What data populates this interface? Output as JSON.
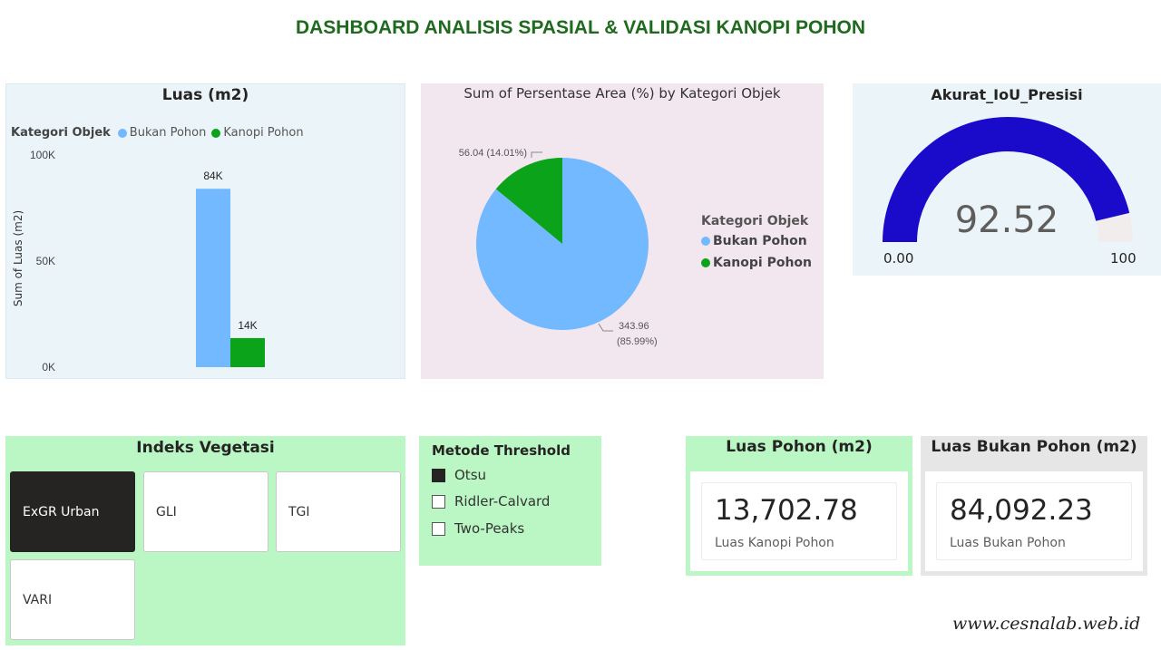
{
  "page": {
    "title": "DASHBOARD ANALISIS SPASIAL & VALIDASI KANOPI POHON",
    "watermark": "www.cesnalab.web.id"
  },
  "colors": {
    "bukan_pohon": "#73b9ff",
    "kanopi_pohon": "#0aa31a",
    "gauge_fill": "#1a0ac9",
    "gauge_track": "#f2eded",
    "title_green": "#1e6b1e"
  },
  "chart_data": [
    {
      "type": "bar",
      "title": "Luas (m2)",
      "legend_title": "Kategori Objek",
      "legend_position": "top-left",
      "ylabel": "Sum of Luas (m2)",
      "xlabel": "",
      "categories": [
        "Bukan Pohon",
        "Kanopi Pohon"
      ],
      "values": [
        84092.23,
        13702.78
      ],
      "data_labels": [
        "84K",
        "14K"
      ],
      "ylim": [
        0,
        100000
      ],
      "ytick_values": [
        0,
        50000,
        100000
      ],
      "ytick_labels": [
        "0K",
        "50K",
        "100K"
      ],
      "grid": false
    },
    {
      "type": "pie",
      "title": "Sum of Persentase Area (%) by Kategori Objek",
      "legend_title": "Kategori Objek",
      "legend_position": "right",
      "categories": [
        "Bukan Pohon",
        "Kanopi Pohon"
      ],
      "values": [
        343.96,
        56.04
      ],
      "percent": [
        85.99,
        14.01
      ],
      "data_labels": [
        "343.96 (85.99%)",
        "56.04 (14.01%)"
      ],
      "data_labels_parts": [
        [
          "343.96",
          "(85.99%)"
        ],
        [
          "56.04 (14.01%)"
        ]
      ]
    }
  ],
  "gauge": {
    "title": "Akurat_IoU_Presisi",
    "value": 92.52,
    "value_label": "92.52",
    "min": 0,
    "max": 100,
    "min_label": "0.00",
    "max_label": "100"
  },
  "indeks_vegetasi": {
    "title": "Indeks Vegetasi",
    "options": [
      "ExGR Urban",
      "GLI",
      "TGI",
      "VARI"
    ],
    "selected": "ExGR Urban"
  },
  "metode_threshold": {
    "title": "Metode Threshold",
    "options": [
      "Otsu",
      "Ridler-Calvard",
      "Two-Peaks"
    ],
    "checked": "Otsu"
  },
  "kpi": [
    {
      "title": "Luas Pohon (m2)",
      "value": "13,702.78",
      "label": "Luas Kanopi Pohon"
    },
    {
      "title": "Luas Bukan Pohon (m2)",
      "value": "84,092.23",
      "label": "Luas Bukan Pohon"
    }
  ]
}
